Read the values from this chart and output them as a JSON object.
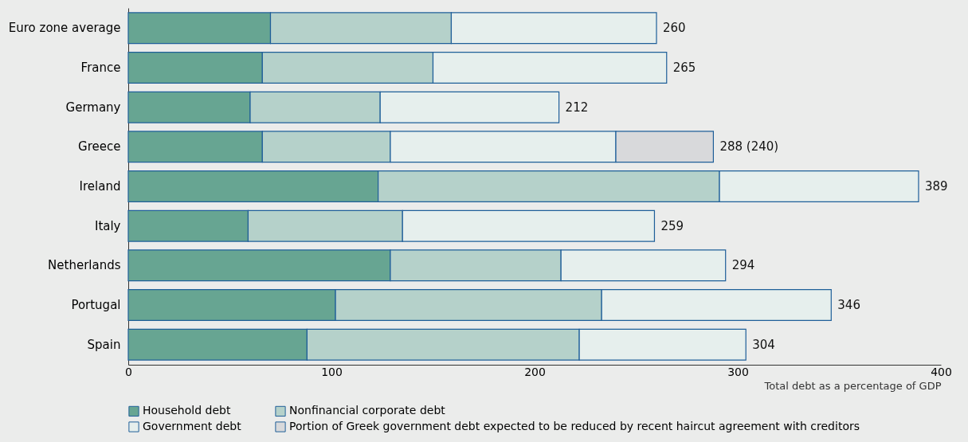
{
  "chart_data": {
    "type": "bar",
    "orientation": "horizontal",
    "stacked": true,
    "categories": [
      "Euro zone average",
      "France",
      "Germany",
      "Greece",
      "Ireland",
      "Italy",
      "Netherlands",
      "Portugal",
      "Spain"
    ],
    "series": [
      {
        "name": "Household debt",
        "color": "#67a592",
        "values": [
          70,
          66,
          60,
          66,
          123,
          59,
          129,
          102,
          88
        ]
      },
      {
        "name": "Nonfinancial corporate debt",
        "color": "#b5d1ca",
        "values": [
          89,
          84,
          64,
          63,
          168,
          76,
          84,
          131,
          134
        ]
      },
      {
        "name": "Government debt",
        "color": "#e6efed",
        "values": [
          101,
          115,
          88,
          111,
          98,
          124,
          81,
          113,
          82
        ]
      },
      {
        "name": "Portion of Greek government debt expected to be reduced by recent haircut agreement with creditors",
        "color": "#d8d9db",
        "values": [
          null,
          null,
          null,
          48,
          null,
          null,
          null,
          null,
          null
        ]
      }
    ],
    "totals": [
      "260",
      "265",
      "212",
      "288 (240)",
      "389",
      "259",
      "294",
      "346",
      "304"
    ],
    "xlabel": "Total debt as a percentage of GDP",
    "xlim": [
      0,
      400
    ],
    "xticks": [
      0,
      100,
      200,
      300,
      400
    ],
    "grid": false,
    "legend": "bottom"
  }
}
